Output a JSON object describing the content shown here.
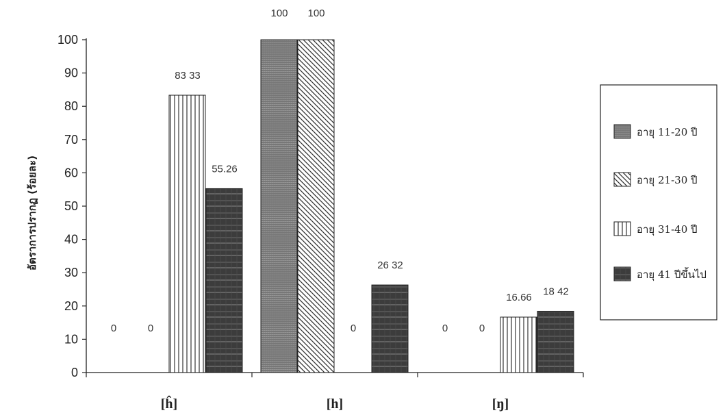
{
  "chart_data": {
    "type": "bar",
    "title": "",
    "xlabel": "",
    "ylabel": "อัตราการปรากฏ (ร้อยละ)",
    "ylim": [
      0,
      100
    ],
    "yticks": [
      0,
      10,
      20,
      30,
      40,
      50,
      60,
      70,
      80,
      90,
      100
    ],
    "grid": false,
    "legend_position": "right",
    "categories": [
      "[ĥ]",
      "[h]",
      "[ŋ]"
    ],
    "series": [
      {
        "name": "อายุ 11-20 ปี",
        "values": [
          0,
          100,
          0
        ],
        "labels": [
          "0",
          "100",
          "0"
        ],
        "pattern": "dense-gray",
        "color": "#8a8a8a"
      },
      {
        "name": "อายุ 21-30 ปี",
        "values": [
          0,
          100,
          0
        ],
        "labels": [
          "0",
          "100",
          "0"
        ],
        "pattern": "diagonal",
        "color": "#333333"
      },
      {
        "name": "อายุ 31-40 ปี",
        "values": [
          83.33,
          0,
          16.66
        ],
        "labels": [
          "83 33",
          "0",
          "16.66"
        ],
        "pattern": "vertical-lines",
        "color": "#333333"
      },
      {
        "name": "อายุ 41 ปีขึ้นไป",
        "values": [
          55.26,
          26.32,
          18.42
        ],
        "labels": [
          "55.26",
          "26 32",
          "18 42"
        ],
        "pattern": "dark",
        "color": "#3a3a3a"
      }
    ]
  }
}
